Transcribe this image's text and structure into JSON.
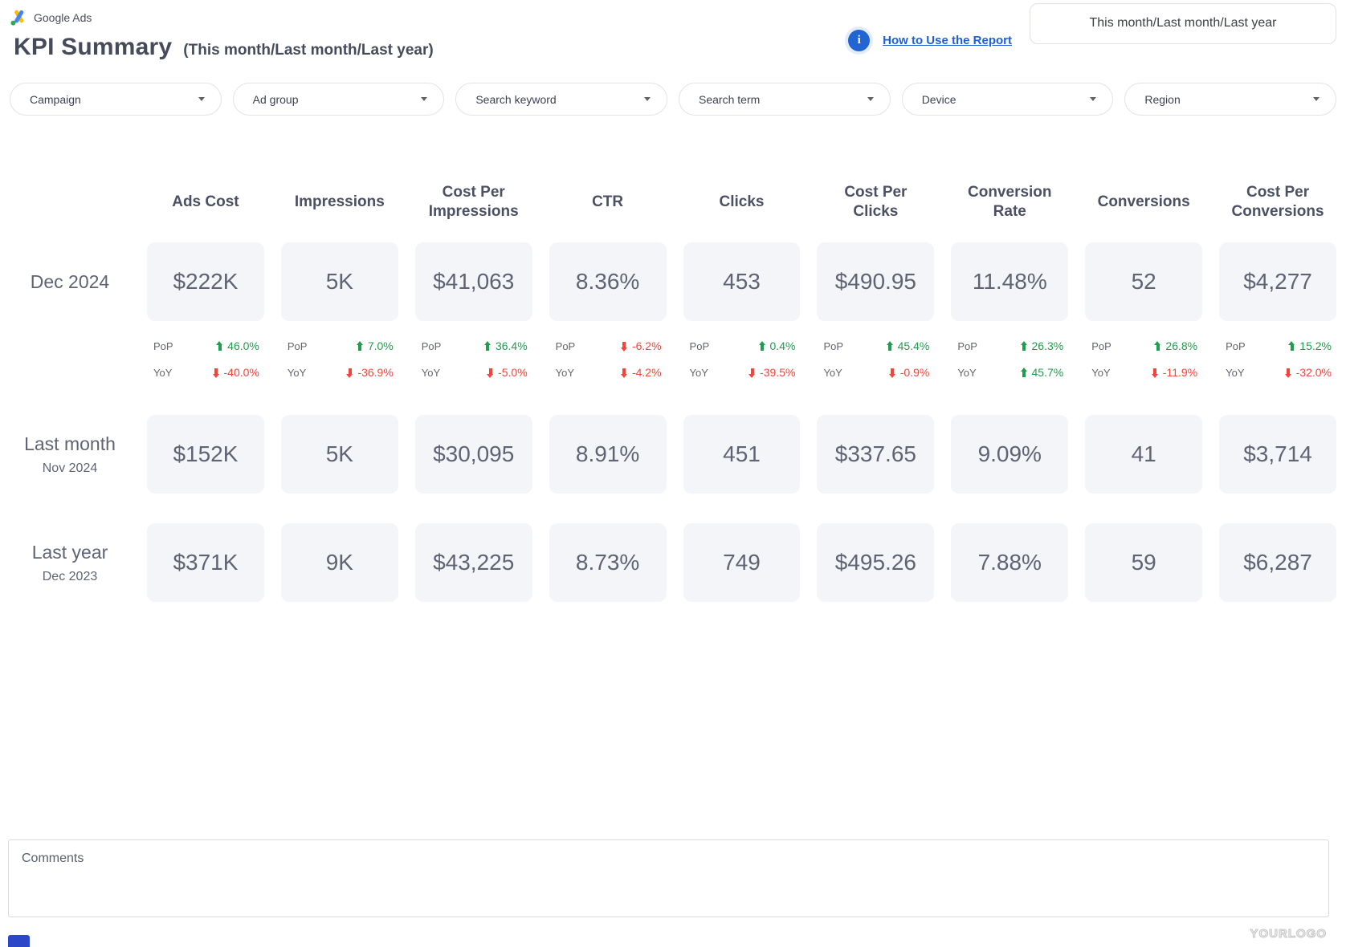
{
  "colors": {
    "positive": "#1f9e4d",
    "negative": "#f4453c",
    "link_blue": "#1d5fd6",
    "accent_blue": "#2264d1",
    "card_bg": "#f4f5f9"
  },
  "brand": {
    "name": "Google Ads"
  },
  "header": {
    "title": "KPI Summary",
    "subtitle": "(This month/Last month/Last year)",
    "info_icon_glyph": "i",
    "help_link_label": "How to Use the Report",
    "period_selector_value": "This month/Last month/Last year"
  },
  "filters": [
    {
      "label": "Campaign"
    },
    {
      "label": "Ad group"
    },
    {
      "label": "Search keyword"
    },
    {
      "label": "Search term"
    },
    {
      "label": "Device"
    },
    {
      "label": "Region"
    }
  ],
  "kpi_table": {
    "pop_label": "PoP",
    "yoy_label": "YoY",
    "columns": [
      "Ads Cost",
      "Impressions",
      "Cost Per Impressions",
      "CTR",
      "Clicks",
      "Cost Per Clicks",
      "Conversion Rate",
      "Conversions",
      "Cost Per Conversions"
    ],
    "rows": [
      {
        "label": "Dec 2024",
        "sublabel": "",
        "values": [
          "$222K",
          "5K",
          "$41,063",
          "8.36%",
          "453",
          "$490.95",
          "11.48%",
          "52",
          "$4,277"
        ],
        "pop": [
          {
            "direction": "up",
            "value": "46.0%"
          },
          {
            "direction": "up",
            "value": "7.0%"
          },
          {
            "direction": "up",
            "value": "36.4%"
          },
          {
            "direction": "down",
            "value": "-6.2%"
          },
          {
            "direction": "up",
            "value": "0.4%"
          },
          {
            "direction": "up",
            "value": "45.4%"
          },
          {
            "direction": "up",
            "value": "26.3%"
          },
          {
            "direction": "up",
            "value": "26.8%"
          },
          {
            "direction": "up",
            "value": "15.2%"
          }
        ],
        "yoy": [
          {
            "direction": "down",
            "value": "-40.0%"
          },
          {
            "direction": "down",
            "value": "-36.9%"
          },
          {
            "direction": "down",
            "value": "-5.0%"
          },
          {
            "direction": "down",
            "value": "-4.2%"
          },
          {
            "direction": "down",
            "value": "-39.5%"
          },
          {
            "direction": "down",
            "value": "-0.9%"
          },
          {
            "direction": "up",
            "value": "45.7%"
          },
          {
            "direction": "down",
            "value": "-11.9%"
          },
          {
            "direction": "down",
            "value": "-32.0%"
          }
        ]
      },
      {
        "label": "Last month",
        "sublabel": "Nov 2024",
        "values": [
          "$152K",
          "5K",
          "$30,095",
          "8.91%",
          "451",
          "$337.65",
          "9.09%",
          "41",
          "$3,714"
        ]
      },
      {
        "label": "Last year",
        "sublabel": "Dec 2023",
        "values": [
          "$371K",
          "9K",
          "$43,225",
          "8.73%",
          "749",
          "$495.26",
          "7.88%",
          "59",
          "$6,287"
        ]
      }
    ]
  },
  "comments": {
    "placeholder": "Comments"
  },
  "footer": {
    "watermark": "YOURLOGO"
  }
}
